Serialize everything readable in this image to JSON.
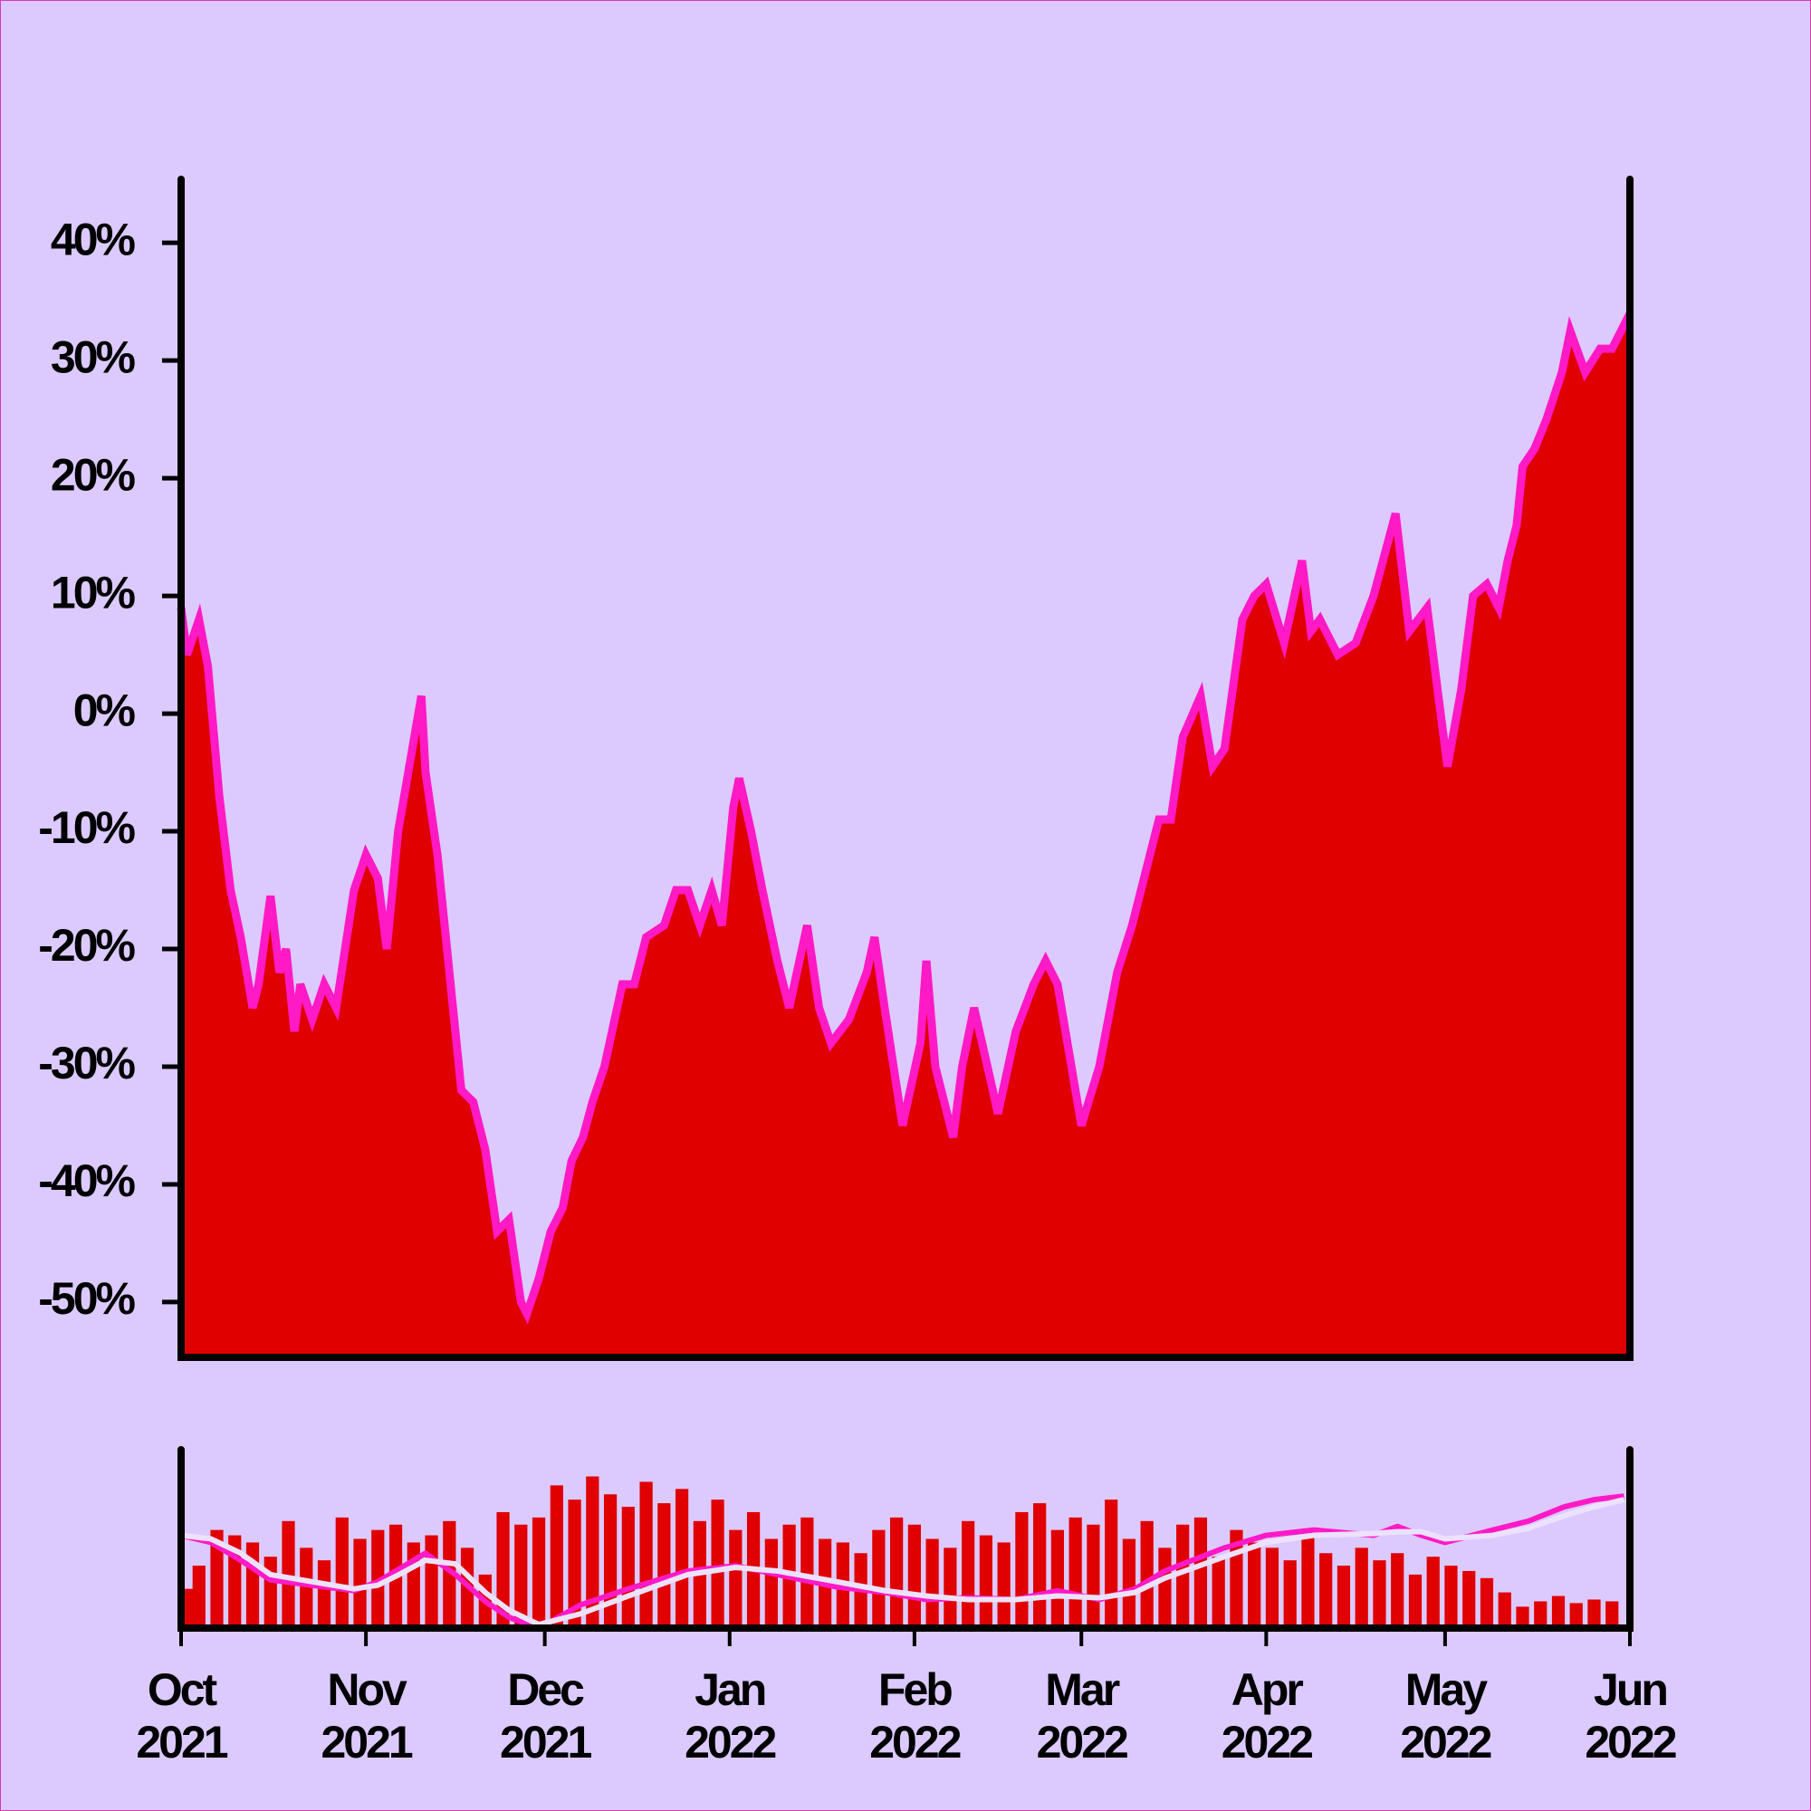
{
  "chart_data": [
    {
      "type": "area",
      "color": "#e00000",
      "line_color": "#ff1ac6",
      "x": [
        0,
        1,
        3,
        4.5,
        6.4,
        8.3,
        10,
        12,
        13,
        15,
        16.5,
        17.6,
        19,
        20,
        22,
        24,
        26,
        29,
        31,
        33,
        34.5,
        36.4,
        40.3,
        41,
        43,
        45,
        47,
        49,
        51,
        53,
        55,
        57,
        58,
        60,
        62,
        64,
        65.5,
        67.4,
        69,
        71,
        74,
        76,
        78,
        81,
        83,
        85,
        87,
        89,
        90.7,
        92.6,
        93.6,
        95.6,
        97.5,
        100,
        102,
        105,
        107,
        109,
        112,
        115,
        116.3,
        118,
        121,
        124,
        125,
        126.5,
        129.5,
        131,
        133,
        135.7,
        137,
        140,
        143,
        145,
        147,
        149,
        151,
        154,
        157,
        159.5,
        162,
        164,
        166,
        168,
        171,
        173,
        175,
        178,
        180,
        182,
        185,
        188,
        189.5,
        191,
        194,
        197,
        200,
        203.7,
        206,
        209,
        211,
        212.4,
        214.7,
        216.7,
        219,
        221,
        222.5,
        224,
        225,
        227,
        229,
        231.6,
        233,
        235.5,
        238,
        240,
        242,
        243
      ],
      "values": [
        9,
        5,
        8,
        4,
        -7,
        -15,
        -19,
        -25,
        -23,
        -15.5,
        -22,
        -20,
        -27,
        -23,
        -26,
        -23,
        -25,
        -15,
        -12,
        -14,
        -20,
        -10,
        1.5,
        -5,
        -12,
        -22,
        -32,
        -33,
        -37,
        -44,
        -43,
        -50,
        -51,
        -48,
        -44,
        -42,
        -38,
        -36,
        -33,
        -30,
        -23,
        -23,
        -19,
        -18,
        -15,
        -15,
        -18,
        -15,
        -18,
        -8,
        -5.5,
        -10,
        -15,
        -21,
        -25,
        -18,
        -25,
        -28,
        -26,
        -22,
        -19,
        -25,
        -35,
        -28,
        -21,
        -30,
        -36,
        -30,
        -25,
        -31,
        -34,
        -27,
        -23,
        -21,
        -23,
        -29,
        -35,
        -30,
        -22,
        -18,
        -13,
        -9,
        -9,
        -2,
        1.5,
        -4.5,
        -3,
        8,
        10,
        11,
        6,
        13,
        7,
        8,
        5,
        6,
        10,
        17,
        7,
        9,
        1,
        -4.5,
        2,
        10,
        11,
        9,
        13,
        16,
        21,
        22.5,
        25,
        29,
        32.5,
        29,
        31,
        31,
        33,
        34
      ],
      "xlim": [
        0,
        243
      ],
      "ylim": [
        -54.7,
        45.4
      ],
      "yticks": [
        {
          "value": 40,
          "label": "40%"
        },
        {
          "value": 30,
          "label": "30%"
        },
        {
          "value": 20,
          "label": "20%"
        },
        {
          "value": 10,
          "label": "10%"
        },
        {
          "value": 0,
          "label": "0%"
        },
        {
          "value": -10,
          "label": "-10%"
        },
        {
          "value": -20,
          "label": "-20%"
        },
        {
          "value": -30,
          "label": "-30%"
        },
        {
          "value": -40,
          "label": "-40%"
        },
        {
          "value": -50,
          "label": "-50%"
        }
      ]
    },
    {
      "type": "bar",
      "xlim": [
        0,
        243
      ],
      "ylim": [
        0,
        100
      ],
      "xticks": [
        {
          "value": 0,
          "label": "Oct\n2021"
        },
        {
          "value": 31,
          "label": "Nov\n2021"
        },
        {
          "value": 61,
          "label": "Dec\n2021"
        },
        {
          "value": 92,
          "label": "Jan\n2022"
        },
        {
          "value": 123,
          "label": "Feb\n2022"
        },
        {
          "value": 151,
          "label": "Mar\n2022"
        },
        {
          "value": 182,
          "label": "Apr\n2022"
        },
        {
          "value": 212,
          "label": "May\n2022"
        },
        {
          "value": 243,
          "label": "Jun\n2022"
        }
      ],
      "series": [
        {
          "type": "bar",
          "color": "#e00000",
          "x": [
            0,
            3,
            6,
            9,
            12,
            15,
            18,
            21,
            24,
            27,
            30,
            33,
            36,
            39,
            42,
            45,
            48,
            51,
            54,
            57,
            60,
            63,
            66,
            69,
            72,
            75,
            78,
            81,
            84,
            87,
            90,
            93,
            96,
            99,
            102,
            105,
            108,
            111,
            114,
            117,
            120,
            123,
            126,
            129,
            132,
            135,
            138,
            141,
            144,
            147,
            150,
            153,
            156,
            159,
            162,
            165,
            168,
            171,
            174,
            177,
            180,
            183,
            186,
            189,
            192,
            195,
            198,
            201,
            204,
            207,
            210,
            213,
            216,
            219,
            222,
            225,
            228,
            231,
            234,
            237,
            240
          ],
          "values": [
            22,
            35,
            55,
            52,
            48,
            40,
            60,
            45,
            38,
            62,
            50,
            55,
            58,
            48,
            52,
            60,
            45,
            30,
            65,
            58,
            62,
            80,
            72,
            85,
            75,
            68,
            82,
            70,
            78,
            60,
            72,
            55,
            65,
            50,
            58,
            62,
            50,
            48,
            42,
            55,
            62,
            58,
            50,
            45,
            60,
            52,
            48,
            65,
            70,
            55,
            62,
            58,
            72,
            50,
            60,
            45,
            58,
            62,
            40,
            55,
            48,
            45,
            38,
            52,
            42,
            35,
            45,
            38,
            42,
            30,
            40,
            35,
            32,
            28,
            20,
            12,
            15,
            18,
            14,
            16,
            15
          ]
        },
        {
          "type": "line",
          "color": "#ff1ac6",
          "x": [
            0,
            5,
            10,
            15,
            22,
            29,
            33,
            36,
            41,
            46,
            51,
            55,
            60,
            67,
            75,
            85,
            93,
            100,
            110,
            118,
            125,
            132,
            140,
            147,
            154,
            160,
            165,
            175,
            182,
            190,
            200,
            204,
            208,
            212,
            220,
            226,
            232,
            237,
            242
          ],
          "values": [
            52,
            48,
            38,
            27,
            24,
            21,
            26,
            32,
            42,
            30,
            15,
            6,
            0,
            13,
            22,
            32,
            35,
            30,
            23,
            20,
            16,
            17,
            16,
            21,
            16,
            22,
            32,
            45,
            52,
            55,
            52,
            57,
            52,
            48,
            55,
            60,
            68,
            72,
            74
          ]
        },
        {
          "type": "line",
          "color": "#ece2ff",
          "x": [
            0,
            5,
            10,
            15,
            22,
            29,
            33,
            36,
            41,
            46,
            51,
            55,
            60,
            67,
            75,
            85,
            93,
            100,
            110,
            118,
            125,
            132,
            140,
            147,
            154,
            160,
            165,
            175,
            182,
            190,
            200,
            204,
            208,
            212,
            220,
            226,
            232,
            237,
            242
          ],
          "values": [
            52,
            50,
            42,
            30,
            26,
            22,
            24,
            29,
            38,
            36,
            20,
            10,
            2,
            8,
            18,
            30,
            34,
            32,
            26,
            21,
            18,
            16,
            16,
            18,
            17,
            20,
            28,
            40,
            48,
            52,
            53,
            54,
            54,
            50,
            52,
            56,
            63,
            68,
            72
          ]
        }
      ]
    }
  ]
}
